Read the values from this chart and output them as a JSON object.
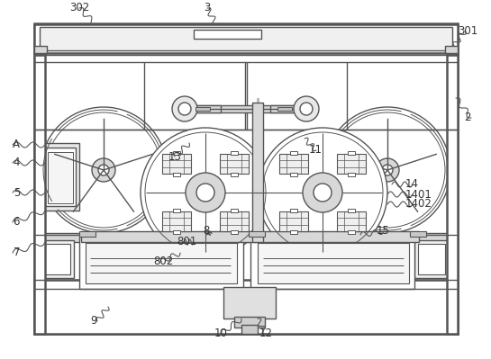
{
  "bg_color": "#ffffff",
  "line_color": "#555555",
  "lw": 1.0,
  "tlw": 1.8,
  "fan_r": 0.088,
  "rot_r": 0.092,
  "figw": 5.45,
  "figh": 3.99,
  "dpi": 100
}
